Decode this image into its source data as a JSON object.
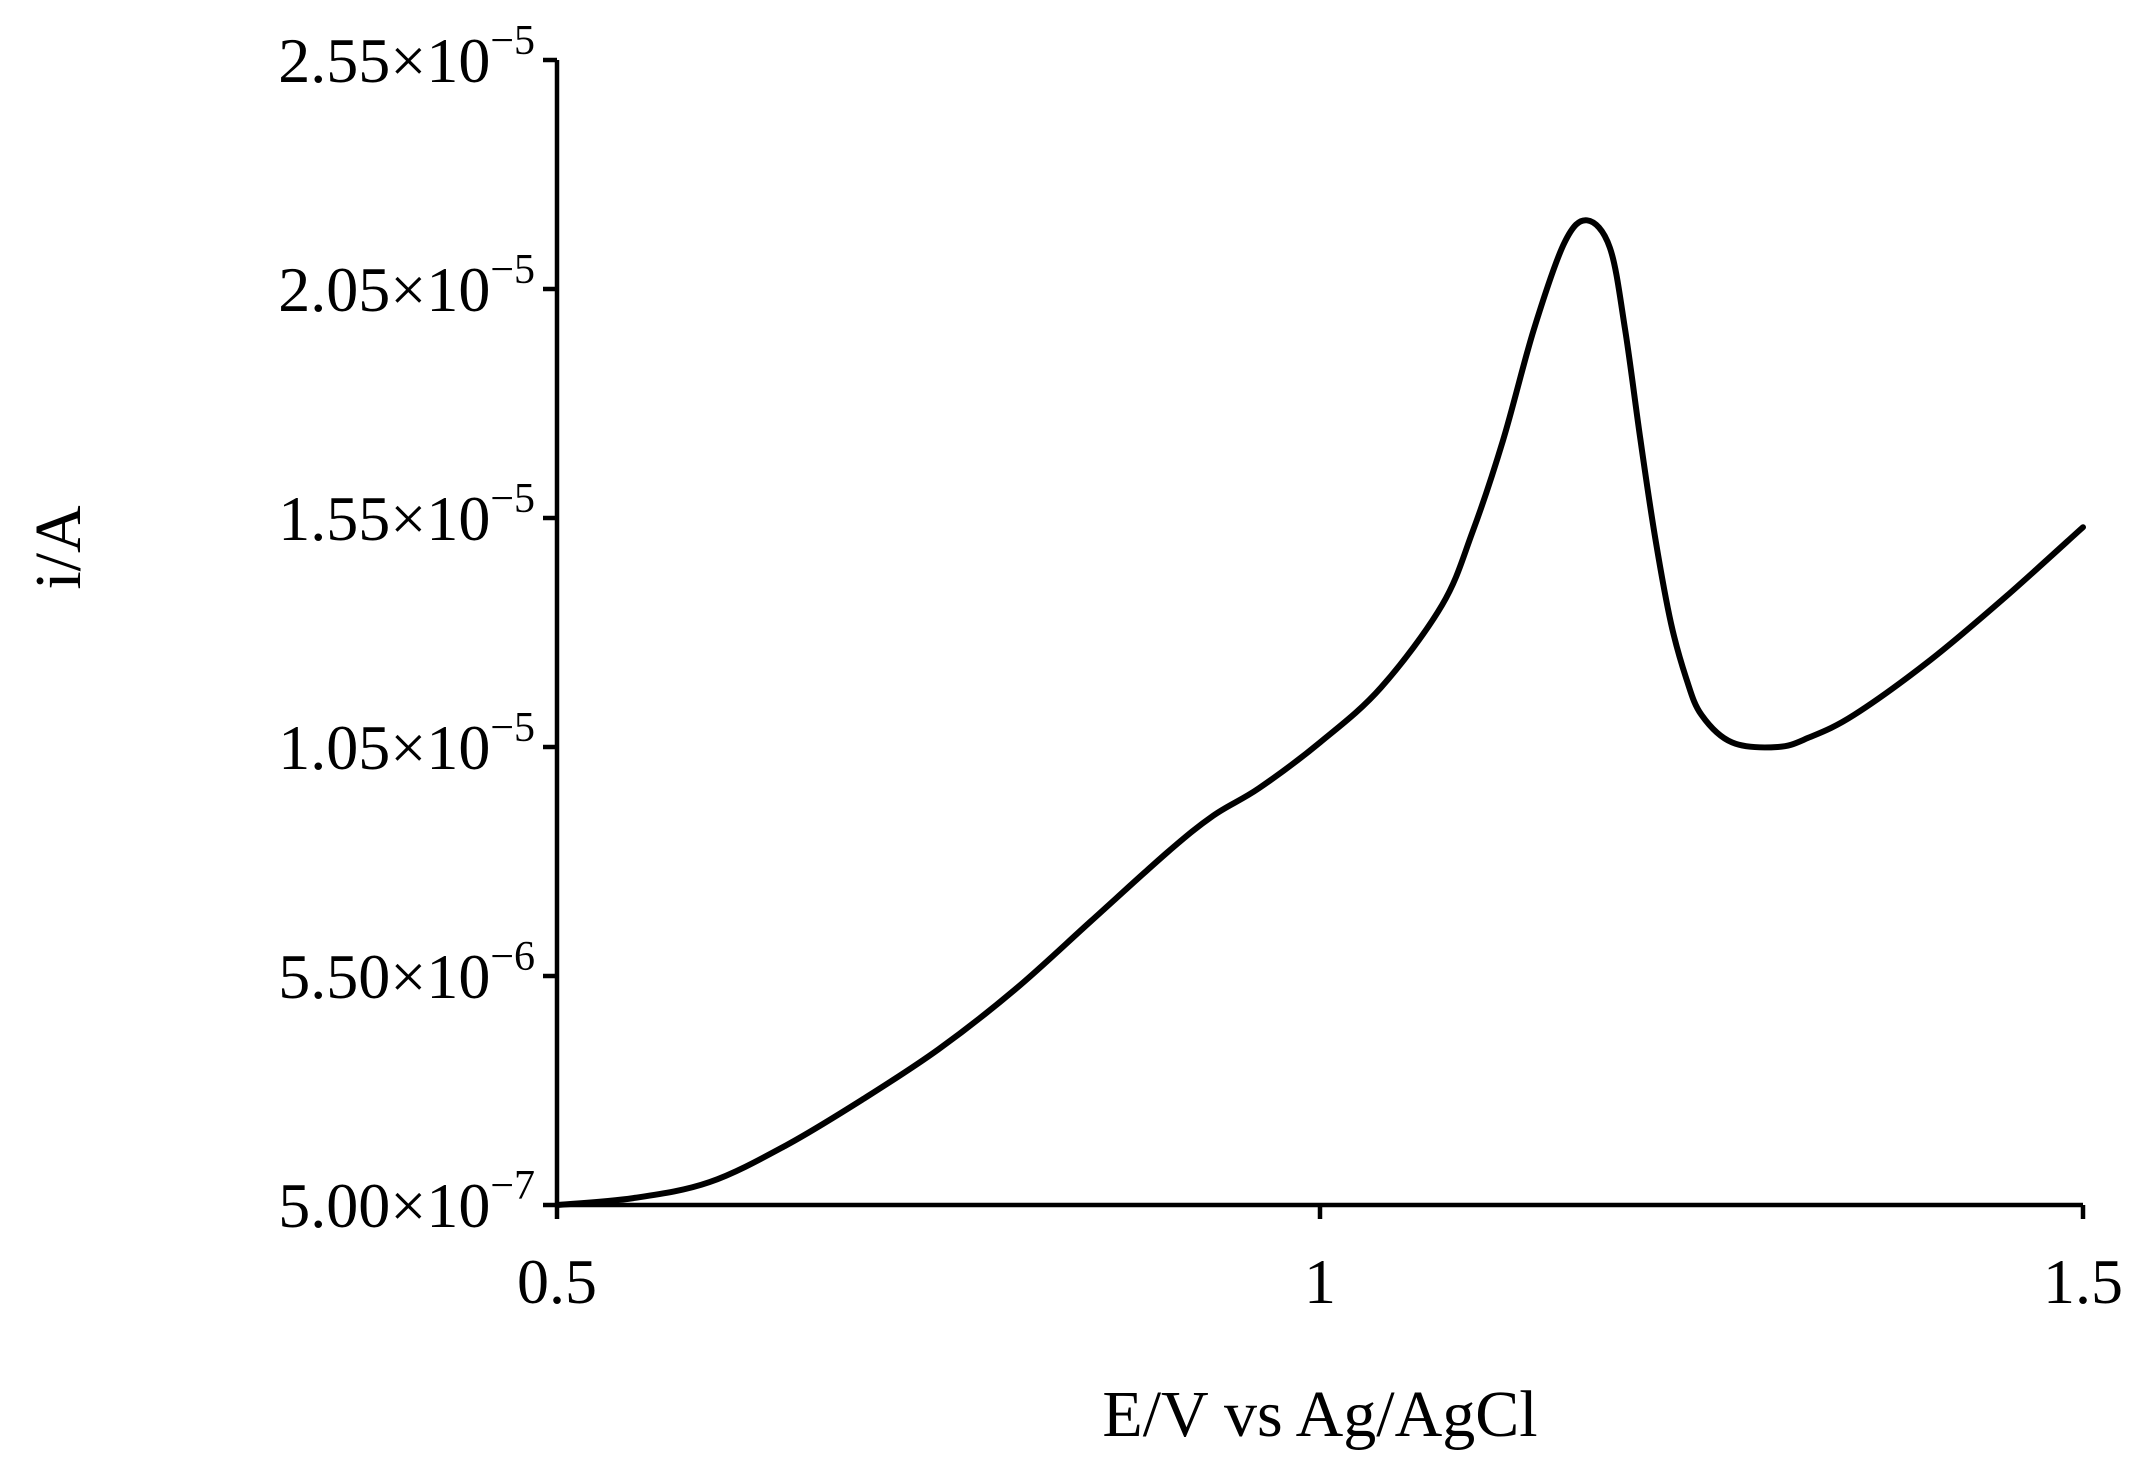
{
  "chart_data": {
    "type": "line",
    "xlabel": "E/V vs Ag/AgCl",
    "ylabel": "i/A",
    "xlim": [
      0.5,
      1.5
    ],
    "ylim": [
      5e-07,
      2.55e-05
    ],
    "grid": false,
    "x_ticks": [
      {
        "value": 0.5,
        "label": "0.5"
      },
      {
        "value": 1.0,
        "label": "1"
      },
      {
        "value": 1.5,
        "label": "1.5"
      }
    ],
    "y_ticks": [
      {
        "value": 5e-07,
        "mantissa": "5.00×10",
        "exp": "−7"
      },
      {
        "value": 5.5e-06,
        "mantissa": "5.50×10",
        "exp": "−6"
      },
      {
        "value": 1.05e-05,
        "mantissa": "1.05×10",
        "exp": "−5"
      },
      {
        "value": 1.55e-05,
        "mantissa": "1.55×10",
        "exp": "−5"
      },
      {
        "value": 2.05e-05,
        "mantissa": "2.05×10",
        "exp": "−5"
      },
      {
        "value": 2.55e-05,
        "mantissa": "2.55×10",
        "exp": "−5"
      }
    ],
    "series": [
      {
        "color": "#000000",
        "x": [
          0.5,
          0.55,
          0.6,
          0.65,
          0.7,
          0.75,
          0.8,
          0.85,
          0.9,
          0.93,
          0.96,
          1.0,
          1.04,
          1.08,
          1.1,
          1.12,
          1.14,
          1.16,
          1.175,
          1.19,
          1.2,
          1.21,
          1.22,
          1.23,
          1.24,
          1.25,
          1.27,
          1.3,
          1.32,
          1.35,
          1.4,
          1.45,
          1.5
        ],
        "y": [
          5e-07,
          6.5e-07,
          1e-06,
          1.8e-06,
          2.8e-06,
          3.9e-06,
          5.2e-06,
          6.7e-06,
          8.2e-06,
          9e-06,
          9.6e-06,
          1.06e-05,
          1.18e-05,
          1.36e-05,
          1.52e-05,
          1.72e-05,
          1.96e-05,
          2.15e-05,
          2.2e-05,
          2.14e-05,
          1.96e-05,
          1.72e-05,
          1.5e-05,
          1.32e-05,
          1.2e-05,
          1.12e-05,
          1.06e-05,
          1.05e-05,
          1.07e-05,
          1.12e-05,
          1.24e-05,
          1.38e-05,
          1.53e-05
        ]
      }
    ]
  }
}
